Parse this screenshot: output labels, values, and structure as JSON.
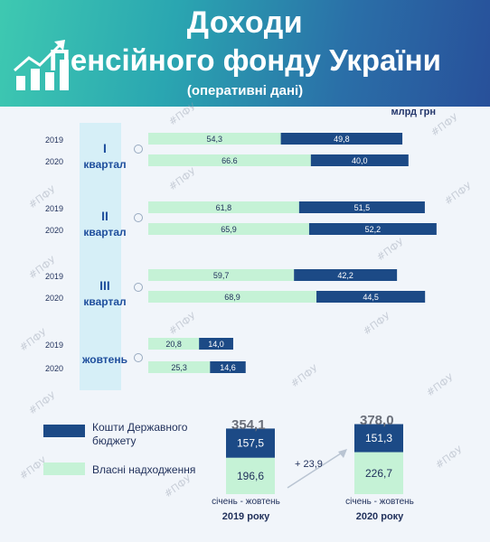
{
  "header": {
    "title_line1": "Доходи",
    "title_line2": "Пенсійного фонду України",
    "subtitle": "(оперативні дані)"
  },
  "unit_label": "млрд грн",
  "watermark": "#ПФУ",
  "colors": {
    "own": "#c5f2d6",
    "state": "#1c4a86",
    "panel": "#d6eff7",
    "title": "#1f4f9d"
  },
  "periods": [
    {
      "roman": "I",
      "label": "квартал"
    },
    {
      "roman": "II",
      "label": "квартал"
    },
    {
      "roman": "III",
      "label": "квартал"
    },
    {
      "roman": "",
      "label": "жовтень"
    }
  ],
  "chart_data": {
    "type": "bar",
    "stacked": true,
    "orientation": "horizontal",
    "unit": "млрд грн",
    "categories": [
      "2019",
      "2020",
      "2019",
      "2020",
      "2019",
      "2020",
      "2019",
      "2020"
    ],
    "series": [
      {
        "name": "Власні надходження",
        "color": "#c5f2d6",
        "values": [
          54.3,
          66.6,
          61.8,
          65.9,
          59.7,
          68.9,
          20.8,
          25.3
        ],
        "labels": [
          "54,3",
          "66.6",
          "61,8",
          "65,9",
          "59,7",
          "68,9",
          "20,8",
          "25,3"
        ]
      },
      {
        "name": "Кошти Державного бюджету",
        "color": "#1c4a86",
        "values": [
          49.8,
          40.0,
          51.5,
          52.2,
          42.2,
          44.5,
          14.0,
          14.6
        ],
        "labels": [
          "49,8",
          "40,0",
          "51,5",
          "52,2",
          "42,2",
          "44,5",
          "14,0",
          "14,6"
        ]
      }
    ]
  },
  "legend": {
    "state": "Кошти Державного бюджету",
    "own": "Власні надходження"
  },
  "totals": {
    "y2019": {
      "total": "354,1",
      "state": "157,5",
      "own": "196,6",
      "state_value": 157.5,
      "own_value": 196.6,
      "period": "січень - жовтень",
      "year": "2019 року"
    },
    "y2020": {
      "total": "378,0",
      "state": "151,3",
      "own": "226,7",
      "state_value": 151.3,
      "own_value": 226.7,
      "period": "січень - жовтень",
      "year": "2020 року"
    },
    "difference": "+ 23,9"
  }
}
